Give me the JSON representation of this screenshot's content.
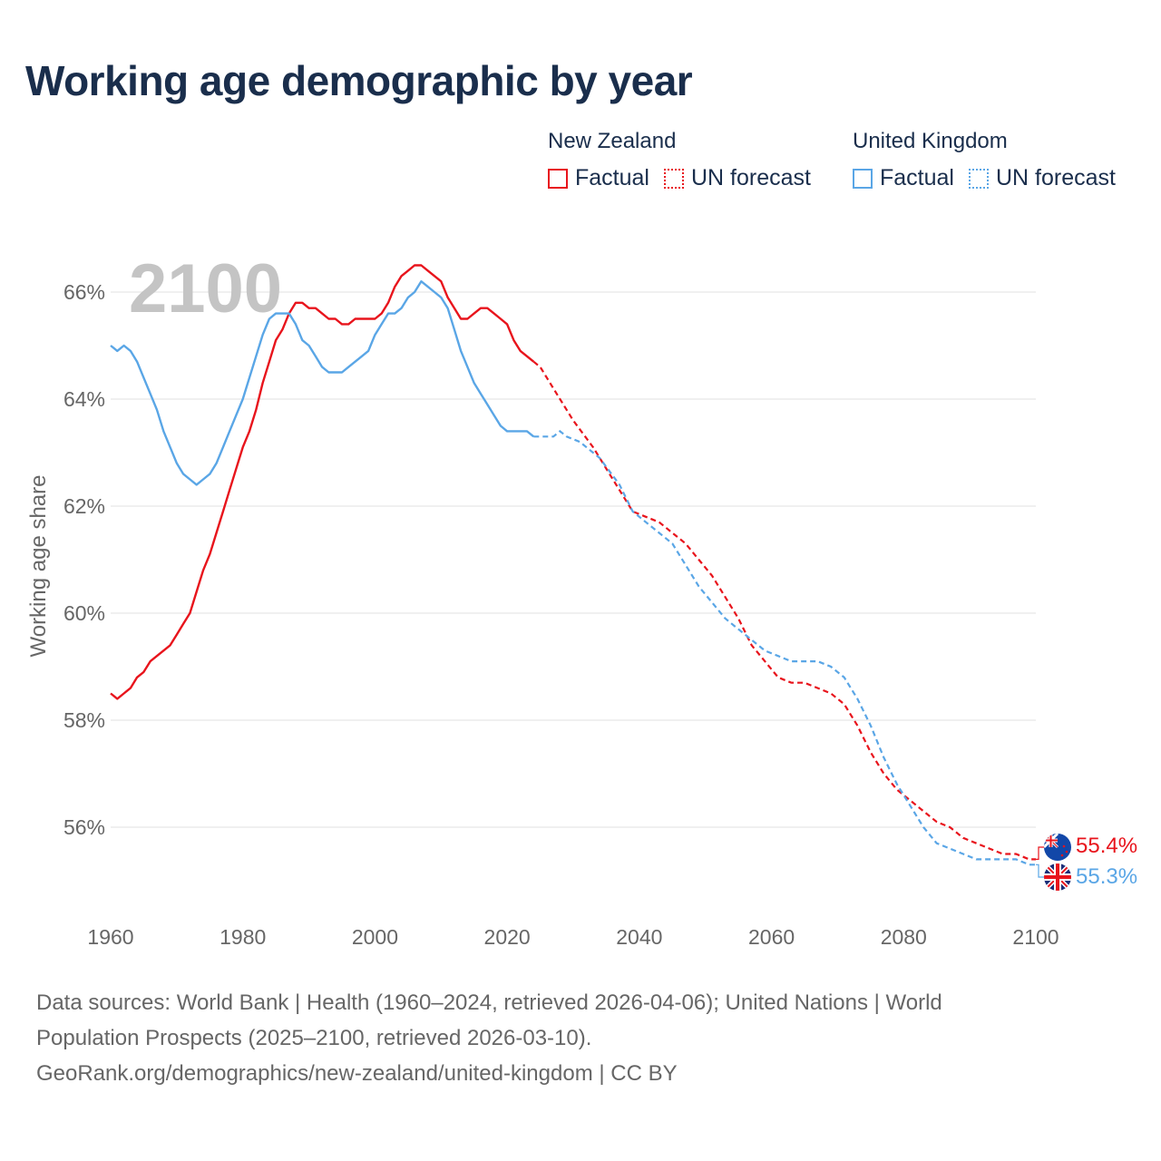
{
  "title": "Working age demographic by year",
  "legend": {
    "groups": [
      {
        "name": "New Zealand",
        "factual": "Factual",
        "forecast": "UN forecast",
        "color": "#e8141c"
      },
      {
        "name": "United Kingdom",
        "factual": "Factual",
        "forecast": "UN forecast",
        "color": "#5aa6e6"
      }
    ]
  },
  "year_watermark": "2100",
  "footer": {
    "line1": "Data sources: World Bank | Health (1960–2024, retrieved 2026-04-06); United Nations | World",
    "line2": "Population Prospects (2025–2100, retrieved 2026-03-10).",
    "line3": "GeoRank.org/demographics/new-zealand/united-kingdom | CC BY"
  },
  "chart_data": {
    "type": "line",
    "title": "Working age demographic by year",
    "xlabel": "",
    "ylabel": "Working age share",
    "xlim": [
      1960,
      2100
    ],
    "ylim": [
      54.9,
      66.9
    ],
    "x_ticks": [
      1960,
      1980,
      2000,
      2020,
      2040,
      2060,
      2080,
      2100
    ],
    "y_ticks": [
      56,
      58,
      60,
      62,
      64,
      66
    ],
    "y_tick_labels": [
      "56%",
      "58%",
      "60%",
      "62%",
      "64%",
      "66%"
    ],
    "grid": true,
    "end_labels": [
      {
        "series": "New Zealand",
        "label": "55.4%",
        "color": "#e8141c",
        "flag": "nz-flag-icon"
      },
      {
        "series": "United Kingdom",
        "label": "55.3%",
        "color": "#5aa6e6",
        "flag": "uk-flag-icon"
      }
    ],
    "series": [
      {
        "name": "New Zealand",
        "color": "#e8141c",
        "factual_end": 2024,
        "points": [
          [
            1960,
            58.5
          ],
          [
            1961,
            58.4
          ],
          [
            1962,
            58.5
          ],
          [
            1963,
            58.6
          ],
          [
            1964,
            58.8
          ],
          [
            1965,
            58.9
          ],
          [
            1966,
            59.1
          ],
          [
            1967,
            59.2
          ],
          [
            1968,
            59.3
          ],
          [
            1969,
            59.4
          ],
          [
            1970,
            59.6
          ],
          [
            1971,
            59.8
          ],
          [
            1972,
            60.0
          ],
          [
            1973,
            60.4
          ],
          [
            1974,
            60.8
          ],
          [
            1975,
            61.1
          ],
          [
            1976,
            61.5
          ],
          [
            1977,
            61.9
          ],
          [
            1978,
            62.3
          ],
          [
            1979,
            62.7
          ],
          [
            1980,
            63.1
          ],
          [
            1981,
            63.4
          ],
          [
            1982,
            63.8
          ],
          [
            1983,
            64.3
          ],
          [
            1984,
            64.7
          ],
          [
            1985,
            65.1
          ],
          [
            1986,
            65.3
          ],
          [
            1987,
            65.6
          ],
          [
            1988,
            65.8
          ],
          [
            1989,
            65.8
          ],
          [
            1990,
            65.7
          ],
          [
            1991,
            65.7
          ],
          [
            1992,
            65.6
          ],
          [
            1993,
            65.5
          ],
          [
            1994,
            65.5
          ],
          [
            1995,
            65.4
          ],
          [
            1996,
            65.4
          ],
          [
            1997,
            65.5
          ],
          [
            1998,
            65.5
          ],
          [
            1999,
            65.5
          ],
          [
            2000,
            65.5
          ],
          [
            2001,
            65.6
          ],
          [
            2002,
            65.8
          ],
          [
            2003,
            66.1
          ],
          [
            2004,
            66.3
          ],
          [
            2005,
            66.4
          ],
          [
            2006,
            66.5
          ],
          [
            2007,
            66.5
          ],
          [
            2008,
            66.4
          ],
          [
            2009,
            66.3
          ],
          [
            2010,
            66.2
          ],
          [
            2011,
            65.9
          ],
          [
            2012,
            65.7
          ],
          [
            2013,
            65.5
          ],
          [
            2014,
            65.5
          ],
          [
            2015,
            65.6
          ],
          [
            2016,
            65.7
          ],
          [
            2017,
            65.7
          ],
          [
            2018,
            65.6
          ],
          [
            2019,
            65.5
          ],
          [
            2020,
            65.4
          ],
          [
            2021,
            65.1
          ],
          [
            2022,
            64.9
          ],
          [
            2023,
            64.8
          ],
          [
            2024,
            64.7
          ],
          [
            2025,
            64.6
          ],
          [
            2027,
            64.2
          ],
          [
            2030,
            63.6
          ],
          [
            2033,
            63.1
          ],
          [
            2036,
            62.5
          ],
          [
            2039,
            61.9
          ],
          [
            2041,
            61.8
          ],
          [
            2043,
            61.7
          ],
          [
            2045,
            61.5
          ],
          [
            2047,
            61.3
          ],
          [
            2049,
            61.0
          ],
          [
            2051,
            60.7
          ],
          [
            2053,
            60.3
          ],
          [
            2055,
            59.9
          ],
          [
            2057,
            59.4
          ],
          [
            2059,
            59.1
          ],
          [
            2061,
            58.8
          ],
          [
            2063,
            58.7
          ],
          [
            2065,
            58.7
          ],
          [
            2067,
            58.6
          ],
          [
            2069,
            58.5
          ],
          [
            2071,
            58.3
          ],
          [
            2073,
            57.9
          ],
          [
            2075,
            57.4
          ],
          [
            2077,
            57.0
          ],
          [
            2079,
            56.7
          ],
          [
            2081,
            56.5
          ],
          [
            2083,
            56.3
          ],
          [
            2085,
            56.1
          ],
          [
            2087,
            56.0
          ],
          [
            2089,
            55.8
          ],
          [
            2091,
            55.7
          ],
          [
            2093,
            55.6
          ],
          [
            2095,
            55.5
          ],
          [
            2097,
            55.5
          ],
          [
            2099,
            55.4
          ],
          [
            2100,
            55.4
          ]
        ]
      },
      {
        "name": "United Kingdom",
        "color": "#5aa6e6",
        "factual_end": 2024,
        "points": [
          [
            1960,
            65.0
          ],
          [
            1961,
            64.9
          ],
          [
            1962,
            65.0
          ],
          [
            1963,
            64.9
          ],
          [
            1964,
            64.7
          ],
          [
            1965,
            64.4
          ],
          [
            1966,
            64.1
          ],
          [
            1967,
            63.8
          ],
          [
            1968,
            63.4
          ],
          [
            1969,
            63.1
          ],
          [
            1970,
            62.8
          ],
          [
            1971,
            62.6
          ],
          [
            1972,
            62.5
          ],
          [
            1973,
            62.4
          ],
          [
            1974,
            62.5
          ],
          [
            1975,
            62.6
          ],
          [
            1976,
            62.8
          ],
          [
            1977,
            63.1
          ],
          [
            1978,
            63.4
          ],
          [
            1979,
            63.7
          ],
          [
            1980,
            64.0
          ],
          [
            1981,
            64.4
          ],
          [
            1982,
            64.8
          ],
          [
            1983,
            65.2
          ],
          [
            1984,
            65.5
          ],
          [
            1985,
            65.6
          ],
          [
            1986,
            65.6
          ],
          [
            1987,
            65.6
          ],
          [
            1988,
            65.4
          ],
          [
            1989,
            65.1
          ],
          [
            1990,
            65.0
          ],
          [
            1991,
            64.8
          ],
          [
            1992,
            64.6
          ],
          [
            1993,
            64.5
          ],
          [
            1994,
            64.5
          ],
          [
            1995,
            64.5
          ],
          [
            1996,
            64.6
          ],
          [
            1997,
            64.7
          ],
          [
            1998,
            64.8
          ],
          [
            1999,
            64.9
          ],
          [
            2000,
            65.2
          ],
          [
            2001,
            65.4
          ],
          [
            2002,
            65.6
          ],
          [
            2003,
            65.6
          ],
          [
            2004,
            65.7
          ],
          [
            2005,
            65.9
          ],
          [
            2006,
            66.0
          ],
          [
            2007,
            66.2
          ],
          [
            2008,
            66.1
          ],
          [
            2009,
            66.0
          ],
          [
            2010,
            65.9
          ],
          [
            2011,
            65.7
          ],
          [
            2012,
            65.3
          ],
          [
            2013,
            64.9
          ],
          [
            2014,
            64.6
          ],
          [
            2015,
            64.3
          ],
          [
            2016,
            64.1
          ],
          [
            2017,
            63.9
          ],
          [
            2018,
            63.7
          ],
          [
            2019,
            63.5
          ],
          [
            2020,
            63.4
          ],
          [
            2021,
            63.4
          ],
          [
            2022,
            63.4
          ],
          [
            2023,
            63.4
          ],
          [
            2024,
            63.3
          ],
          [
            2025,
            63.3
          ],
          [
            2027,
            63.3
          ],
          [
            2028,
            63.4
          ],
          [
            2029,
            63.3
          ],
          [
            2031,
            63.2
          ],
          [
            2034,
            62.9
          ],
          [
            2037,
            62.4
          ],
          [
            2039,
            61.9
          ],
          [
            2041,
            61.7
          ],
          [
            2043,
            61.5
          ],
          [
            2045,
            61.3
          ],
          [
            2047,
            60.9
          ],
          [
            2049,
            60.5
          ],
          [
            2051,
            60.2
          ],
          [
            2053,
            59.9
          ],
          [
            2055,
            59.7
          ],
          [
            2057,
            59.5
          ],
          [
            2059,
            59.3
          ],
          [
            2061,
            59.2
          ],
          [
            2063,
            59.1
          ],
          [
            2065,
            59.1
          ],
          [
            2067,
            59.1
          ],
          [
            2069,
            59.0
          ],
          [
            2071,
            58.8
          ],
          [
            2073,
            58.4
          ],
          [
            2075,
            57.9
          ],
          [
            2077,
            57.3
          ],
          [
            2079,
            56.8
          ],
          [
            2081,
            56.4
          ],
          [
            2083,
            56.0
          ],
          [
            2085,
            55.7
          ],
          [
            2087,
            55.6
          ],
          [
            2089,
            55.5
          ],
          [
            2091,
            55.4
          ],
          [
            2093,
            55.4
          ],
          [
            2095,
            55.4
          ],
          [
            2097,
            55.4
          ],
          [
            2099,
            55.3
          ],
          [
            2100,
            55.3
          ]
        ]
      }
    ]
  }
}
